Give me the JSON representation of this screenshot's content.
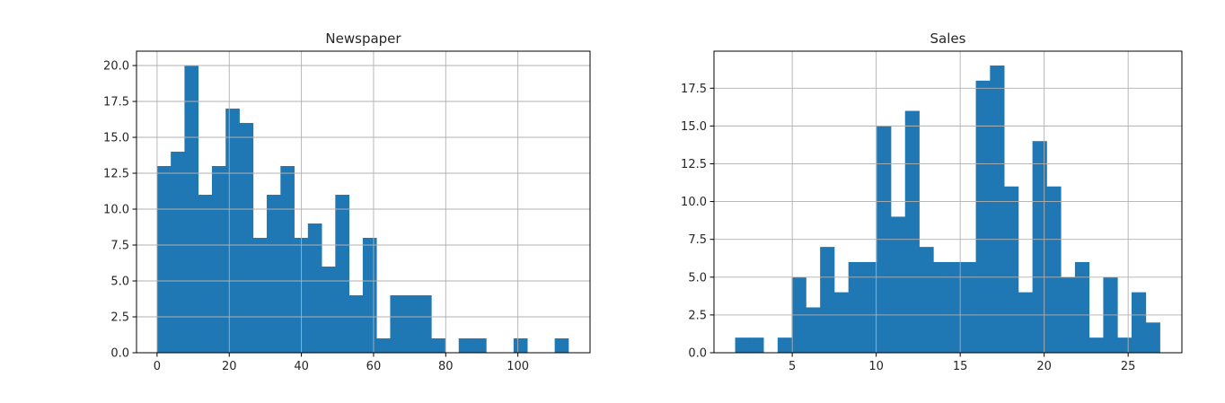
{
  "colors": {
    "bar": "#1f77b4",
    "grid": "#b0b0b0",
    "axis": "#000000"
  },
  "chart_data": [
    {
      "type": "bar",
      "title": "Newspaper",
      "grid": true,
      "xlim": [
        -5.7,
        120.0
      ],
      "ylim": [
        0,
        21.0
      ],
      "xticks": [
        0,
        20,
        40,
        60,
        80,
        100
      ],
      "xtick_labels": [
        "0",
        "20",
        "40",
        "60",
        "80",
        "100"
      ],
      "yticks": [
        0,
        2.5,
        5,
        7.5,
        10,
        12.5,
        15,
        17.5,
        20
      ],
      "ytick_labels": [
        "0.0",
        "2.5",
        "5.0",
        "7.5",
        "10.0",
        "12.5",
        "15.0",
        "17.5",
        "20.0"
      ],
      "bin_start": 0.0,
      "bin_width": 3.8,
      "values": [
        13,
        14,
        20,
        11,
        13,
        17,
        16,
        8,
        11,
        13,
        8,
        9,
        6,
        11,
        4,
        8,
        1,
        4,
        4,
        4,
        1,
        0,
        1,
        1,
        0,
        0,
        1,
        0,
        0,
        1
      ]
    },
    {
      "type": "bar",
      "title": "Sales",
      "grid": true,
      "xlim": [
        0.34,
        28.2
      ],
      "ylim": [
        0,
        19.95
      ],
      "xticks": [
        5,
        10,
        15,
        20,
        25
      ],
      "xtick_labels": [
        "5",
        "10",
        "15",
        "20",
        "25"
      ],
      "yticks": [
        0,
        2.5,
        5,
        7.5,
        10,
        12.5,
        15,
        17.5
      ],
      "ytick_labels": [
        "0.0",
        "2.5",
        "5.0",
        "7.5",
        "10.0",
        "12.5",
        "15.0",
        "17.5"
      ],
      "bin_start": 1.6,
      "bin_width": 0.843,
      "values": [
        1,
        1,
        0,
        1,
        5,
        3,
        7,
        4,
        6,
        6,
        15,
        9,
        16,
        7,
        6,
        6,
        6,
        18,
        19,
        11,
        4,
        14,
        11,
        5,
        6,
        1,
        5,
        1,
        4,
        2
      ]
    }
  ]
}
